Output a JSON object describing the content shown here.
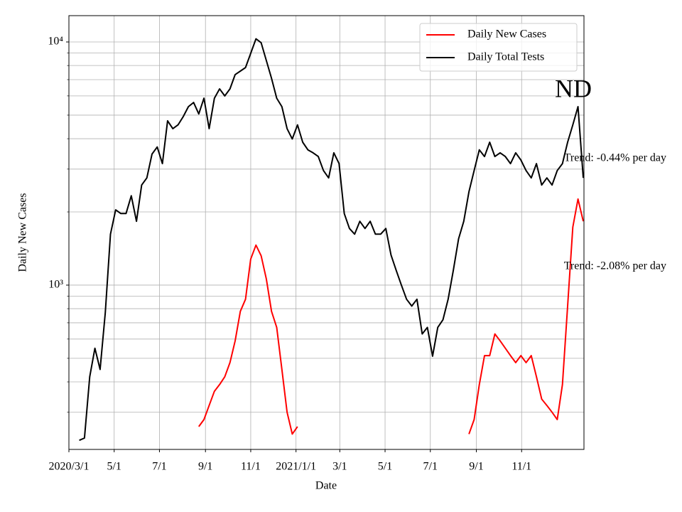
{
  "chart_data": {
    "type": "line",
    "xlabel": "Date",
    "ylabel": "Daily New Cases",
    "yscale": "log",
    "grid": true,
    "legend": "upper right",
    "xlim": [
      "2020-03-01",
      "2022-01-24"
    ],
    "ylim": [
      211,
      12830
    ],
    "xticks": [
      {
        "value": "2020-03-01",
        "label": "2020/3/1"
      },
      {
        "value": "2020-05-01",
        "label": "5/1"
      },
      {
        "value": "2020-07-01",
        "label": "7/1"
      },
      {
        "value": "2020-09-01",
        "label": "9/1"
      },
      {
        "value": "2020-11-01",
        "label": "11/1"
      },
      {
        "value": "2021-01-01",
        "label": "2021/1/1"
      },
      {
        "value": "2021-03-01",
        "label": "3/1"
      },
      {
        "value": "2021-05-01",
        "label": "5/1"
      },
      {
        "value": "2021-07-01",
        "label": "7/1"
      },
      {
        "value": "2021-09-01",
        "label": "9/1"
      },
      {
        "value": "2021-11-01",
        "label": "11/1"
      }
    ],
    "yticks": [
      {
        "value": 1000,
        "label": "10³"
      },
      {
        "value": 10000,
        "label": "10⁴"
      }
    ],
    "minor_yticks": [
      300,
      400,
      500,
      600,
      700,
      800,
      900,
      2000,
      3000,
      4000,
      5000,
      6000,
      7000,
      8000,
      9000
    ],
    "annotations": [
      "ND",
      "Trend: -0.44% per day",
      "Trend: -2.08% per day"
    ],
    "x": [
      "2020-03-15",
      "2020-03-22",
      "2020-03-29",
      "2020-04-05",
      "2020-04-12",
      "2020-04-19",
      "2020-04-26",
      "2020-05-03",
      "2020-05-10",
      "2020-05-17",
      "2020-05-24",
      "2020-05-31",
      "2020-06-07",
      "2020-06-14",
      "2020-06-21",
      "2020-06-28",
      "2020-07-05",
      "2020-07-12",
      "2020-07-19",
      "2020-07-26",
      "2020-08-02",
      "2020-08-09",
      "2020-08-16",
      "2020-08-23",
      "2020-08-30",
      "2020-09-06",
      "2020-09-13",
      "2020-09-20",
      "2020-09-27",
      "2020-10-04",
      "2020-10-11",
      "2020-10-18",
      "2020-10-25",
      "2020-11-01",
      "2020-11-08",
      "2020-11-15",
      "2020-11-22",
      "2020-11-29",
      "2020-12-06",
      "2020-12-13",
      "2020-12-20",
      "2020-12-27",
      "2021-01-03",
      "2021-01-10",
      "2021-01-17",
      "2021-01-24",
      "2021-01-31",
      "2021-02-07",
      "2021-02-14",
      "2021-02-21",
      "2021-02-28",
      "2021-03-07",
      "2021-03-14",
      "2021-03-21",
      "2021-03-28",
      "2021-04-04",
      "2021-04-11",
      "2021-04-18",
      "2021-04-25",
      "2021-05-02",
      "2021-05-09",
      "2021-05-16",
      "2021-05-23",
      "2021-05-30",
      "2021-06-06",
      "2021-06-13",
      "2021-06-20",
      "2021-06-27",
      "2021-07-04",
      "2021-07-11",
      "2021-07-18",
      "2021-07-25",
      "2021-08-01",
      "2021-08-08",
      "2021-08-15",
      "2021-08-22",
      "2021-08-29",
      "2021-09-05",
      "2021-09-12",
      "2021-09-19",
      "2021-09-26",
      "2021-10-03",
      "2021-10-10",
      "2021-10-17",
      "2021-10-24",
      "2021-10-31",
      "2021-11-07",
      "2021-11-14",
      "2021-11-21",
      "2021-11-28",
      "2021-12-05",
      "2021-12-12",
      "2021-12-19",
      "2021-12-26",
      "2022-01-02",
      "2022-01-09",
      "2022-01-16",
      "2022-01-23"
    ],
    "series": [
      {
        "name": "Daily New Cases",
        "color": "#ff0000",
        "values": [
          null,
          null,
          null,
          null,
          null,
          null,
          null,
          null,
          null,
          null,
          null,
          null,
          null,
          null,
          null,
          null,
          null,
          null,
          null,
          null,
          null,
          null,
          null,
          262,
          280,
          320,
          366,
          390,
          420,
          480,
          590,
          780,
          875,
          1280,
          1460,
          1320,
          1060,
          780,
          670,
          450,
          300,
          244,
          262,
          null,
          null,
          null,
          null,
          null,
          null,
          null,
          null,
          null,
          null,
          null,
          null,
          null,
          null,
          null,
          null,
          null,
          null,
          null,
          null,
          null,
          null,
          null,
          null,
          null,
          null,
          null,
          null,
          null,
          null,
          null,
          null,
          244,
          280,
          390,
          513,
          513,
          630,
          590,
          550,
          513,
          480,
          513,
          480,
          513,
          420,
          340,
          320,
          300,
          280,
          390,
          820,
          1730,
          2260,
          1830
        ]
      },
      {
        "name": "Daily Total Tests",
        "color": "#000000",
        "values": [
          230,
          235,
          420,
          550,
          450,
          770,
          1620,
          2040,
          1970,
          1970,
          2330,
          1830,
          2580,
          2760,
          3460,
          3700,
          3160,
          4740,
          4400,
          4560,
          4930,
          5420,
          5640,
          5060,
          5870,
          4400,
          5870,
          6410,
          6000,
          6410,
          7340,
          7590,
          7850,
          8980,
          10300,
          9930,
          8390,
          7090,
          5870,
          5420,
          4400,
          3990,
          4560,
          3870,
          3600,
          3500,
          3380,
          2960,
          2760,
          3500,
          3160,
          1970,
          1710,
          1620,
          1830,
          1710,
          1830,
          1620,
          1620,
          1710,
          1330,
          1150,
          1000,
          875,
          820,
          875,
          630,
          670,
          510,
          670,
          720,
          875,
          1150,
          1550,
          1830,
          2420,
          2960,
          3600,
          3380,
          3870,
          3380,
          3500,
          3380,
          3160,
          3500,
          3270,
          2960,
          2760,
          3160,
          2580,
          2760,
          2580,
          2960,
          3160,
          3870,
          4560,
          5420,
          2760
        ]
      }
    ]
  }
}
